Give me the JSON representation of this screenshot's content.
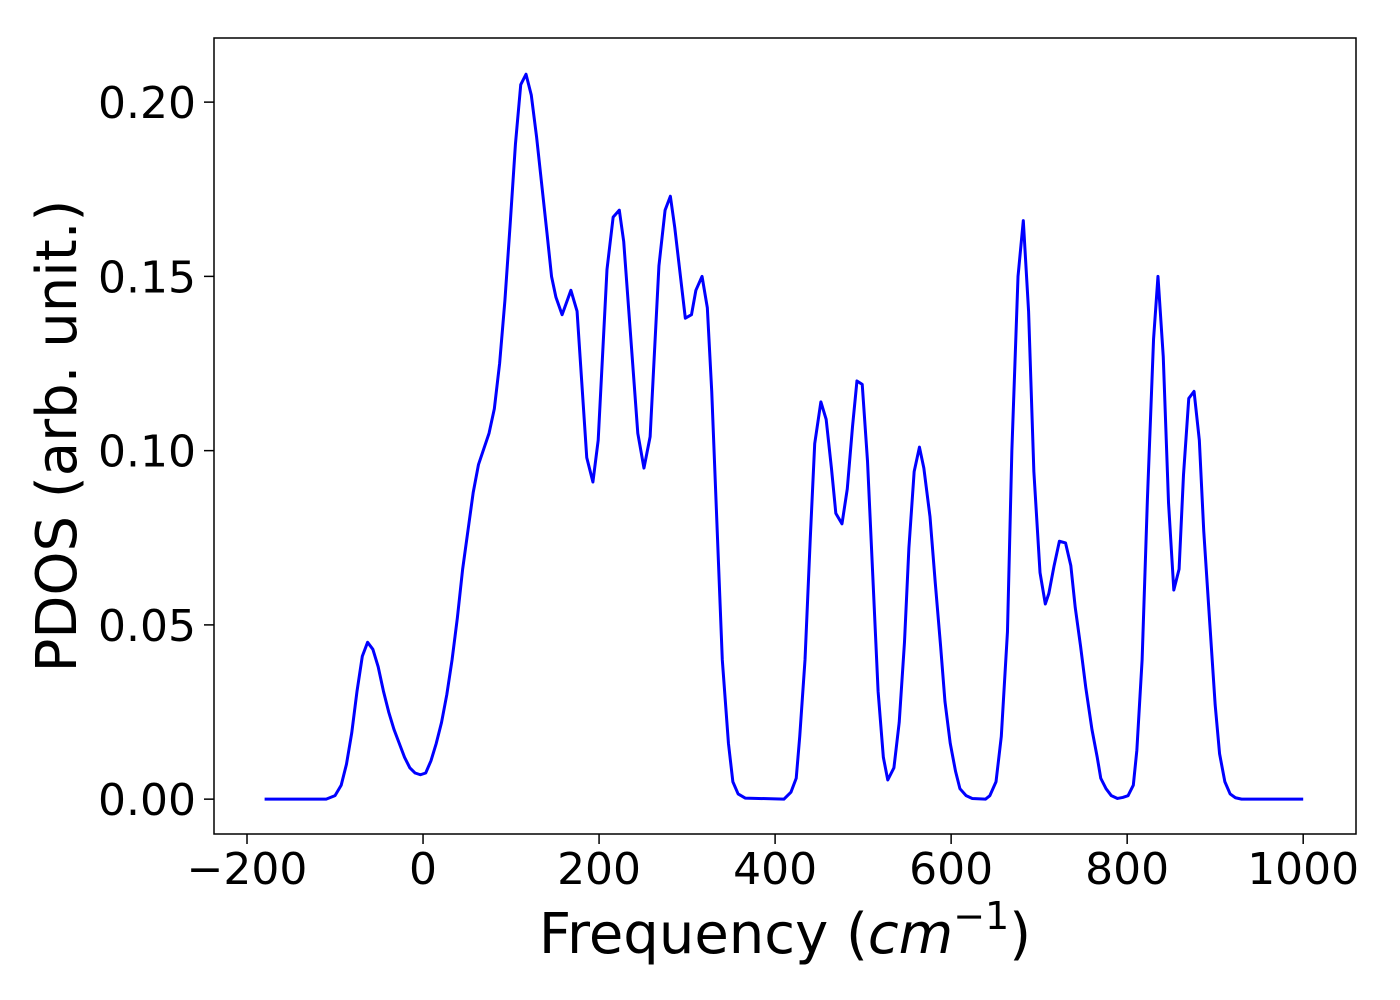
{
  "chart_data": {
    "type": "line",
    "xlabel": [
      "Frequency (",
      "cm",
      "−1",
      ")"
    ],
    "ylabel": "PDOS (arb. unit.)",
    "x": [
      -180,
      -110,
      -100,
      -93,
      -87,
      -81,
      -75,
      -69,
      -63,
      -57,
      -51,
      -45,
      -39,
      -33,
      -27,
      -21,
      -15,
      -9,
      -3,
      3,
      9,
      15,
      21,
      27,
      33,
      39,
      45,
      51,
      57,
      63,
      75,
      81,
      87,
      93,
      99,
      105,
      111,
      117,
      123,
      129,
      135,
      141,
      146,
      151,
      158,
      168,
      175,
      186,
      193,
      199,
      209,
      216,
      223,
      228,
      244,
      251,
      258,
      268,
      275,
      281,
      286,
      298,
      305,
      310,
      317,
      323,
      328,
      340,
      347,
      352,
      358,
      366,
      410,
      418,
      424,
      428,
      434,
      440,
      445,
      452,
      458,
      464,
      469,
      476,
      482,
      488,
      493,
      499,
      505,
      511,
      517,
      523,
      528,
      535,
      541,
      547,
      552,
      558,
      564,
      569,
      576,
      582,
      588,
      593,
      599,
      605,
      610,
      617,
      624,
      639,
      644,
      651,
      657,
      664,
      669,
      676,
      682,
      688,
      694,
      701,
      707,
      711,
      717,
      723,
      730,
      736,
      741,
      747,
      753,
      760,
      766,
      770,
      776,
      782,
      789,
      795,
      801,
      807,
      811,
      817,
      823,
      830,
      835,
      841,
      847,
      853,
      859,
      864,
      870,
      876,
      882,
      887,
      894,
      900,
      905,
      911,
      917,
      923,
      930,
      1000
    ],
    "series": [
      {
        "name": "PDOS",
        "color": "#0000ff",
        "values": [
          0,
          0,
          0.001,
          0.004,
          0.01,
          0.019,
          0.031,
          0.041,
          0.045,
          0.043,
          0.038,
          0.031,
          0.025,
          0.02,
          0.016,
          0.012,
          0.009,
          0.0075,
          0.007,
          0.0075,
          0.011,
          0.016,
          0.022,
          0.03,
          0.04,
          0.052,
          0.066,
          0.077,
          0.088,
          0.096,
          0.105,
          0.112,
          0.125,
          0.143,
          0.165,
          0.188,
          0.205,
          0.208,
          0.202,
          0.19,
          0.176,
          0.162,
          0.15,
          0.144,
          0.139,
          0.146,
          0.14,
          0.098,
          0.091,
          0.103,
          0.152,
          0.167,
          0.169,
          0.16,
          0.105,
          0.095,
          0.104,
          0.153,
          0.169,
          0.173,
          0.164,
          0.138,
          0.139,
          0.146,
          0.15,
          0.141,
          0.117,
          0.04,
          0.016,
          0.005,
          0.0015,
          0.0003,
          0,
          0.002,
          0.006,
          0.018,
          0.04,
          0.075,
          0.102,
          0.114,
          0.109,
          0.095,
          0.082,
          0.079,
          0.089,
          0.107,
          0.12,
          0.119,
          0.097,
          0.064,
          0.031,
          0.012,
          0.0055,
          0.009,
          0.022,
          0.045,
          0.072,
          0.094,
          0.101,
          0.095,
          0.081,
          0.062,
          0.044,
          0.028,
          0.016,
          0.008,
          0.003,
          0.001,
          0.0002,
          0,
          0.001,
          0.005,
          0.018,
          0.048,
          0.1,
          0.15,
          0.166,
          0.14,
          0.094,
          0.065,
          0.056,
          0.059,
          0.067,
          0.074,
          0.0735,
          0.067,
          0.055,
          0.044,
          0.032,
          0.02,
          0.012,
          0.006,
          0.003,
          0.001,
          0.0002,
          0.0005,
          0.001,
          0.004,
          0.014,
          0.04,
          0.086,
          0.132,
          0.15,
          0.127,
          0.085,
          0.06,
          0.066,
          0.093,
          0.115,
          0.117,
          0.103,
          0.077,
          0.05,
          0.027,
          0.013,
          0.005,
          0.0015,
          0.0004,
          0,
          0
        ]
      }
    ],
    "xlim": [
      -237.5,
      1060
    ],
    "ylim": [
      -0.01,
      0.2184
    ],
    "xticks": [
      {
        "value": -200,
        "label": "−200"
      },
      0,
      200,
      400,
      600,
      800,
      1000
    ],
    "yticks": [
      {
        "value": 0,
        "label": "0.00"
      },
      {
        "value": 0.05,
        "label": "0.05"
      },
      {
        "value": 0.1,
        "label": "0.10"
      },
      {
        "value": 0.15,
        "label": "0.15"
      },
      {
        "value": 0.2,
        "label": "0.20"
      }
    ]
  }
}
